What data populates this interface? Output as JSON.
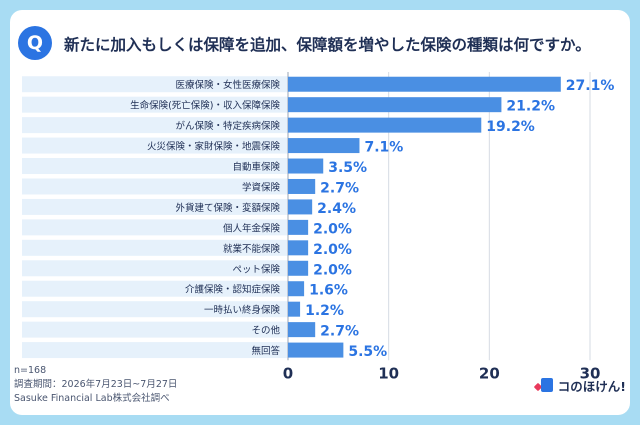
{
  "header": {
    "badge": "Q",
    "title": "新たに加入もしくは保障を追加、保障額を増やした保険の種類は何ですか。"
  },
  "footer": {
    "sample": "n=168",
    "period": "調査期間：2026年7月23日~7月27日",
    "source": "Sasuke Financial Lab株式会社調べ",
    "brand": "コのほけん!"
  },
  "colors": {
    "background": "#a8dcf3",
    "bar": "#4a8fe3",
    "row_band": "#e6f1fb",
    "brand_blue": "#2b74e2",
    "brand_red": "#e9395b",
    "value_text": "#2b74e2"
  },
  "chart_data": {
    "type": "bar",
    "orientation": "horizontal",
    "categories": [
      "医療保険・女性医療保険",
      "生命保険(死亡保険)・収入保障保険",
      "がん保険・特定疾病保険",
      "火災保険・家財保険・地震保険",
      "自動車保険",
      "学資保険",
      "外貨建て保険・変額保険",
      "個人年金保険",
      "就業不能保険",
      "ペット保険",
      "介護保険・認知症保険",
      "一時払い終身保険",
      "その他",
      "無回答"
    ],
    "values": [
      27.1,
      21.2,
      19.2,
      7.1,
      3.5,
      2.7,
      2.4,
      2.0,
      2.0,
      2.0,
      1.6,
      1.2,
      2.7,
      5.5
    ],
    "value_labels": [
      "27.1%",
      "21.2%",
      "19.2%",
      "7.1%",
      "3.5%",
      "2.7%",
      "2.4%",
      "2.0%",
      "2.0%",
      "2.0%",
      "1.6%",
      "1.2%",
      "2.7%",
      "5.5%"
    ],
    "xlim": [
      0,
      30
    ],
    "xticks": [
      "0",
      "10",
      "20",
      "30"
    ],
    "grid": true,
    "title": "",
    "xlabel": "",
    "ylabel": ""
  }
}
